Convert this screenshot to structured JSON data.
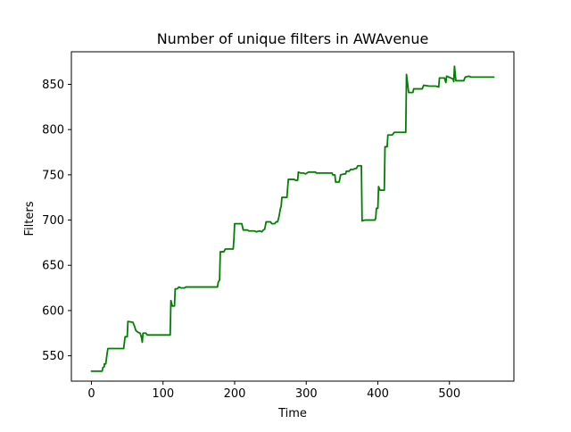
{
  "chart_data": {
    "type": "line",
    "title": "Number of unique filters in AWAvenue",
    "xlabel": "Time",
    "ylabel": "Filters",
    "xlim": [
      -28,
      590
    ],
    "ylim": [
      522,
      886
    ],
    "x_ticks": [
      0,
      100,
      200,
      300,
      400,
      500
    ],
    "y_ticks": [
      550,
      600,
      650,
      700,
      750,
      800,
      850
    ],
    "grid": false,
    "legend": "none",
    "series": [
      {
        "color": "#008000",
        "points": [
          [
            0,
            533
          ],
          [
            10,
            533
          ],
          [
            12,
            533
          ],
          [
            15,
            533
          ],
          [
            16,
            537
          ],
          [
            18,
            538
          ],
          [
            18,
            541
          ],
          [
            20,
            541
          ],
          [
            22,
            553
          ],
          [
            23,
            558
          ],
          [
            45,
            558
          ],
          [
            45,
            558
          ],
          [
            47,
            571
          ],
          [
            50,
            571
          ],
          [
            51,
            588
          ],
          [
            58,
            587
          ],
          [
            60,
            583
          ],
          [
            62,
            578
          ],
          [
            65,
            576
          ],
          [
            68,
            575
          ],
          [
            70,
            570
          ],
          [
            71,
            565
          ],
          [
            72,
            575
          ],
          [
            76,
            575
          ],
          [
            78,
            573
          ],
          [
            82,
            573
          ],
          [
            85,
            573
          ],
          [
            90,
            573
          ],
          [
            110,
            573
          ],
          [
            111,
            611
          ],
          [
            113,
            605
          ],
          [
            116,
            605
          ],
          [
            117,
            624
          ],
          [
            120,
            624
          ],
          [
            122,
            626
          ],
          [
            125,
            625
          ],
          [
            130,
            625
          ],
          [
            132,
            626
          ],
          [
            140,
            626
          ],
          [
            150,
            626
          ],
          [
            160,
            626
          ],
          [
            176,
            626
          ],
          [
            177,
            631
          ],
          [
            179,
            634
          ],
          [
            180,
            665
          ],
          [
            185,
            665
          ],
          [
            187,
            668
          ],
          [
            198,
            668
          ],
          [
            199,
            679
          ],
          [
            200,
            696
          ],
          [
            210,
            696
          ],
          [
            212,
            689
          ],
          [
            218,
            689
          ],
          [
            220,
            688
          ],
          [
            228,
            688
          ],
          [
            230,
            687
          ],
          [
            235,
            688
          ],
          [
            238,
            687
          ],
          [
            240,
            689
          ],
          [
            242,
            690
          ],
          [
            244,
            698
          ],
          [
            250,
            698
          ],
          [
            252,
            696
          ],
          [
            256,
            696
          ],
          [
            258,
            698
          ],
          [
            260,
            698
          ],
          [
            262,
            704
          ],
          [
            264,
            713
          ],
          [
            265,
            715
          ],
          [
            266,
            725
          ],
          [
            273,
            725
          ],
          [
            275,
            745
          ],
          [
            283,
            745
          ],
          [
            285,
            744
          ],
          [
            288,
            744
          ],
          [
            289,
            753
          ],
          [
            292,
            752
          ],
          [
            296,
            752
          ],
          [
            299,
            751
          ],
          [
            301,
            752
          ],
          [
            303,
            753
          ],
          [
            308,
            753
          ],
          [
            313,
            753
          ],
          [
            314,
            752
          ],
          [
            320,
            752
          ],
          [
            326,
            752
          ],
          [
            336,
            752
          ],
          [
            337,
            750
          ],
          [
            340,
            750
          ],
          [
            341,
            742
          ],
          [
            346,
            742
          ],
          [
            348,
            750
          ],
          [
            353,
            751
          ],
          [
            355,
            751
          ],
          [
            356,
            754
          ],
          [
            360,
            754
          ],
          [
            362,
            756
          ],
          [
            366,
            756
          ],
          [
            368,
            757
          ],
          [
            370,
            757
          ],
          [
            372,
            760
          ],
          [
            375,
            760
          ],
          [
            377,
            760
          ],
          [
            378,
            699
          ],
          [
            382,
            700
          ],
          [
            396,
            700
          ],
          [
            397,
            702
          ],
          [
            398,
            713
          ],
          [
            400,
            713
          ],
          [
            401,
            737
          ],
          [
            403,
            733
          ],
          [
            408,
            733
          ],
          [
            409,
            733
          ],
          [
            410,
            781
          ],
          [
            413,
            781
          ],
          [
            414,
            794
          ],
          [
            420,
            794
          ],
          [
            423,
            797
          ],
          [
            428,
            797
          ],
          [
            430,
            797
          ],
          [
            439,
            797
          ],
          [
            440,
            861
          ],
          [
            443,
            841
          ],
          [
            449,
            841
          ],
          [
            450,
            845
          ],
          [
            462,
            845
          ],
          [
            464,
            849
          ],
          [
            472,
            848
          ],
          [
            475,
            848
          ],
          [
            481,
            848
          ],
          [
            485,
            847
          ],
          [
            486,
            857
          ],
          [
            493,
            857
          ],
          [
            495,
            852
          ],
          [
            496,
            859
          ],
          [
            505,
            856
          ],
          [
            506,
            853
          ],
          [
            507,
            870
          ],
          [
            509,
            854
          ],
          [
            519,
            854
          ],
          [
            520,
            854
          ],
          [
            522,
            858
          ],
          [
            527,
            859
          ],
          [
            530,
            858
          ],
          [
            545,
            858
          ],
          [
            562,
            858
          ]
        ]
      }
    ]
  }
}
